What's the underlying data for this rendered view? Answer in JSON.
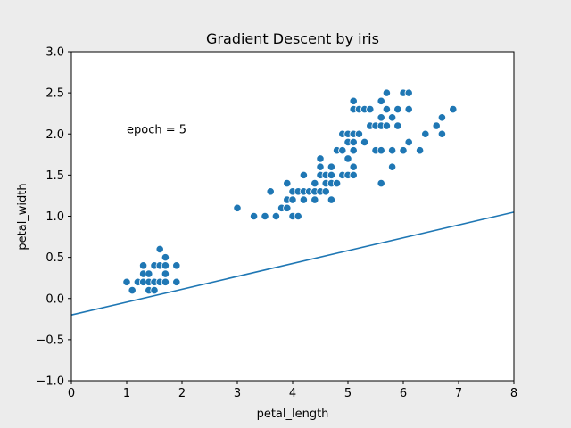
{
  "chart_data": {
    "type": "scatter",
    "title": "Gradient Descent by iris",
    "xlabel": "petal_length",
    "ylabel": "petal_width",
    "xlim": [
      0,
      8
    ],
    "ylim": [
      -1.0,
      3.0
    ],
    "x_ticks": [
      "0",
      "1",
      "2",
      "3",
      "4",
      "5",
      "6",
      "7",
      "8"
    ],
    "y_ticks": [
      "−1.0",
      "−0.5",
      "0.0",
      "0.5",
      "1.0",
      "1.5",
      "2.0",
      "2.5",
      "3.0"
    ],
    "grid": false,
    "annotation": {
      "text": "epoch = 5",
      "x": 1.0,
      "y": 2.05
    },
    "colors": {
      "points": "#1f77b4",
      "line": "#1f77b4",
      "background": "#ececec",
      "plot_area": "#ffffff"
    },
    "series": [
      {
        "type": "scatter",
        "points": [
          [
            1.0,
            0.2
          ],
          [
            1.1,
            0.1
          ],
          [
            1.2,
            0.2
          ],
          [
            1.3,
            0.2
          ],
          [
            1.3,
            0.3
          ],
          [
            1.3,
            0.4
          ],
          [
            1.4,
            0.1
          ],
          [
            1.4,
            0.2
          ],
          [
            1.4,
            0.3
          ],
          [
            1.5,
            0.1
          ],
          [
            1.5,
            0.2
          ],
          [
            1.5,
            0.4
          ],
          [
            1.6,
            0.2
          ],
          [
            1.6,
            0.4
          ],
          [
            1.6,
            0.6
          ],
          [
            1.7,
            0.2
          ],
          [
            1.7,
            0.3
          ],
          [
            1.7,
            0.4
          ],
          [
            1.7,
            0.5
          ],
          [
            1.9,
            0.2
          ],
          [
            1.9,
            0.4
          ],
          [
            3.0,
            1.1
          ],
          [
            3.3,
            1.0
          ],
          [
            3.5,
            1.0
          ],
          [
            3.6,
            1.3
          ],
          [
            3.7,
            1.0
          ],
          [
            3.8,
            1.1
          ],
          [
            3.9,
            1.1
          ],
          [
            3.9,
            1.2
          ],
          [
            3.9,
            1.4
          ],
          [
            4.0,
            1.0
          ],
          [
            4.0,
            1.2
          ],
          [
            4.0,
            1.3
          ],
          [
            4.1,
            1.0
          ],
          [
            4.1,
            1.3
          ],
          [
            4.2,
            1.2
          ],
          [
            4.2,
            1.3
          ],
          [
            4.2,
            1.5
          ],
          [
            4.3,
            1.3
          ],
          [
            4.4,
            1.2
          ],
          [
            4.4,
            1.3
          ],
          [
            4.4,
            1.4
          ],
          [
            4.5,
            1.3
          ],
          [
            4.5,
            1.5
          ],
          [
            4.5,
            1.6
          ],
          [
            4.5,
            1.7
          ],
          [
            4.6,
            1.3
          ],
          [
            4.6,
            1.4
          ],
          [
            4.6,
            1.5
          ],
          [
            4.7,
            1.2
          ],
          [
            4.7,
            1.4
          ],
          [
            4.7,
            1.5
          ],
          [
            4.7,
            1.6
          ],
          [
            4.8,
            1.4
          ],
          [
            4.8,
            1.8
          ],
          [
            4.9,
            1.5
          ],
          [
            4.9,
            1.8
          ],
          [
            4.9,
            2.0
          ],
          [
            5.0,
            1.5
          ],
          [
            5.0,
            1.7
          ],
          [
            5.0,
            1.9
          ],
          [
            5.0,
            2.0
          ],
          [
            5.1,
            1.5
          ],
          [
            5.1,
            1.6
          ],
          [
            5.1,
            1.8
          ],
          [
            5.1,
            1.9
          ],
          [
            5.1,
            2.0
          ],
          [
            5.1,
            2.3
          ],
          [
            5.1,
            2.4
          ],
          [
            5.2,
            2.0
          ],
          [
            5.2,
            2.3
          ],
          [
            5.3,
            1.9
          ],
          [
            5.3,
            2.3
          ],
          [
            5.4,
            2.1
          ],
          [
            5.4,
            2.3
          ],
          [
            5.5,
            1.8
          ],
          [
            5.5,
            2.1
          ],
          [
            5.6,
            1.4
          ],
          [
            5.6,
            1.8
          ],
          [
            5.6,
            2.1
          ],
          [
            5.6,
            2.2
          ],
          [
            5.6,
            2.4
          ],
          [
            5.7,
            2.1
          ],
          [
            5.7,
            2.3
          ],
          [
            5.7,
            2.5
          ],
          [
            5.8,
            1.6
          ],
          [
            5.8,
            1.8
          ],
          [
            5.8,
            2.2
          ],
          [
            5.9,
            2.1
          ],
          [
            5.9,
            2.3
          ],
          [
            6.0,
            1.8
          ],
          [
            6.0,
            2.5
          ],
          [
            6.1,
            1.9
          ],
          [
            6.1,
            2.3
          ],
          [
            6.1,
            2.5
          ],
          [
            6.3,
            1.8
          ],
          [
            6.4,
            2.0
          ],
          [
            6.6,
            2.1
          ],
          [
            6.7,
            2.0
          ],
          [
            6.7,
            2.2
          ],
          [
            6.9,
            2.3
          ]
        ]
      },
      {
        "type": "line",
        "points": [
          [
            0,
            -0.2
          ],
          [
            8,
            1.05
          ]
        ]
      }
    ]
  }
}
